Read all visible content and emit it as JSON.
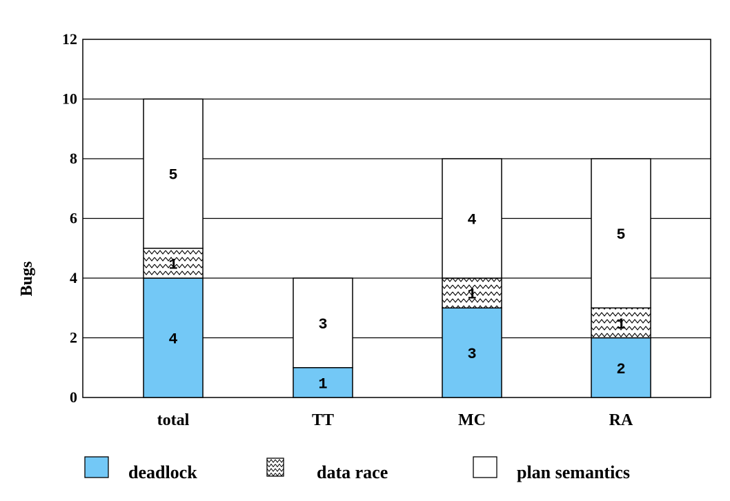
{
  "chart_data": {
    "type": "bar",
    "stacked": true,
    "categories": [
      "total",
      "TT",
      "MC",
      "RA"
    ],
    "series": [
      {
        "name": "deadlock",
        "values": [
          4,
          1,
          3,
          2
        ],
        "color": "#73c8f6",
        "pattern": "solid"
      },
      {
        "name": "data race",
        "values": [
          1,
          0,
          1,
          1
        ],
        "color": "#ffffff",
        "pattern": "zigzag"
      },
      {
        "name": "plan semantics",
        "values": [
          5,
          3,
          4,
          5
        ],
        "color": "#ffffff",
        "pattern": "none"
      }
    ],
    "title": "",
    "xlabel": "",
    "ylabel": "Bugs",
    "ylim": [
      0,
      12
    ],
    "yticks": [
      0,
      2,
      4,
      6,
      8,
      10,
      12
    ],
    "grid": true,
    "legend_position": "bottom"
  }
}
